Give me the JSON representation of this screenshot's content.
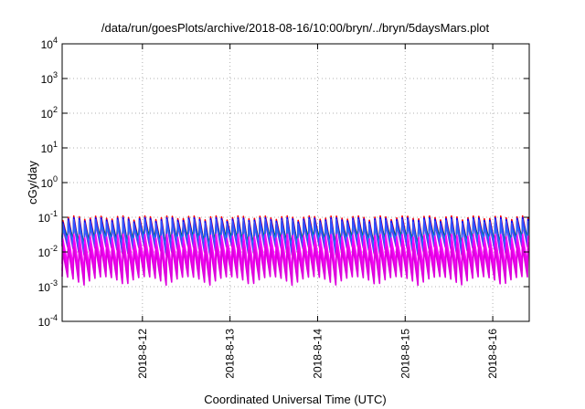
{
  "chart_data": {
    "type": "line",
    "title": "/data/run/goesPlots/archive/2018-08-16/10:00/bryn/../bryn/5daysMars.plot",
    "xlabel": "Coordinated Universal Time (UTC)",
    "ylabel": "cGy/day",
    "yscale": "log",
    "ylim": [
      0.0001,
      10000
    ],
    "xlim": [
      "2018-08-11 02:00",
      "2018-08-16 10:00"
    ],
    "x_ticks": [
      "2018-8-12",
      "2018-8-13",
      "2018-8-14",
      "2018-8-15",
      "2018-8-16"
    ],
    "y_ticks": [
      {
        "base": "10",
        "exp": "-4"
      },
      {
        "base": "10",
        "exp": "-3"
      },
      {
        "base": "10",
        "exp": "-2"
      },
      {
        "base": "10",
        "exp": "-1"
      },
      {
        "base": "10",
        "exp": "0"
      },
      {
        "base": "10",
        "exp": "1"
      },
      {
        "base": "10",
        "exp": "2"
      },
      {
        "base": "10",
        "exp": "3"
      },
      {
        "base": "10",
        "exp": "4"
      }
    ],
    "grid": true,
    "cycle_hours": 1.5,
    "series": [
      {
        "color": "#ff0000",
        "peak": 0.095,
        "trough": 0.0175
      },
      {
        "color": "#00aa00",
        "peak": 0.072,
        "trough": 0.02
      },
      {
        "color": "#0000ff",
        "peak": 0.085,
        "trough": 0.015
      },
      {
        "color": "#cc00cc",
        "peak": 0.06,
        "trough": 0.011
      },
      {
        "color": "#00cccc",
        "peak": 0.055,
        "trough": 0.017
      },
      {
        "color": "#3355ff",
        "peak": 0.075,
        "trough": 0.012
      },
      {
        "color": "#ff00ff",
        "peak": 0.028,
        "trough": 0.0035
      },
      {
        "color": "#ee00ee",
        "peak": 0.018,
        "trough": 0.0022
      },
      {
        "color": "#dd00dd",
        "peak": 0.012,
        "trough": 0.0015
      }
    ]
  }
}
